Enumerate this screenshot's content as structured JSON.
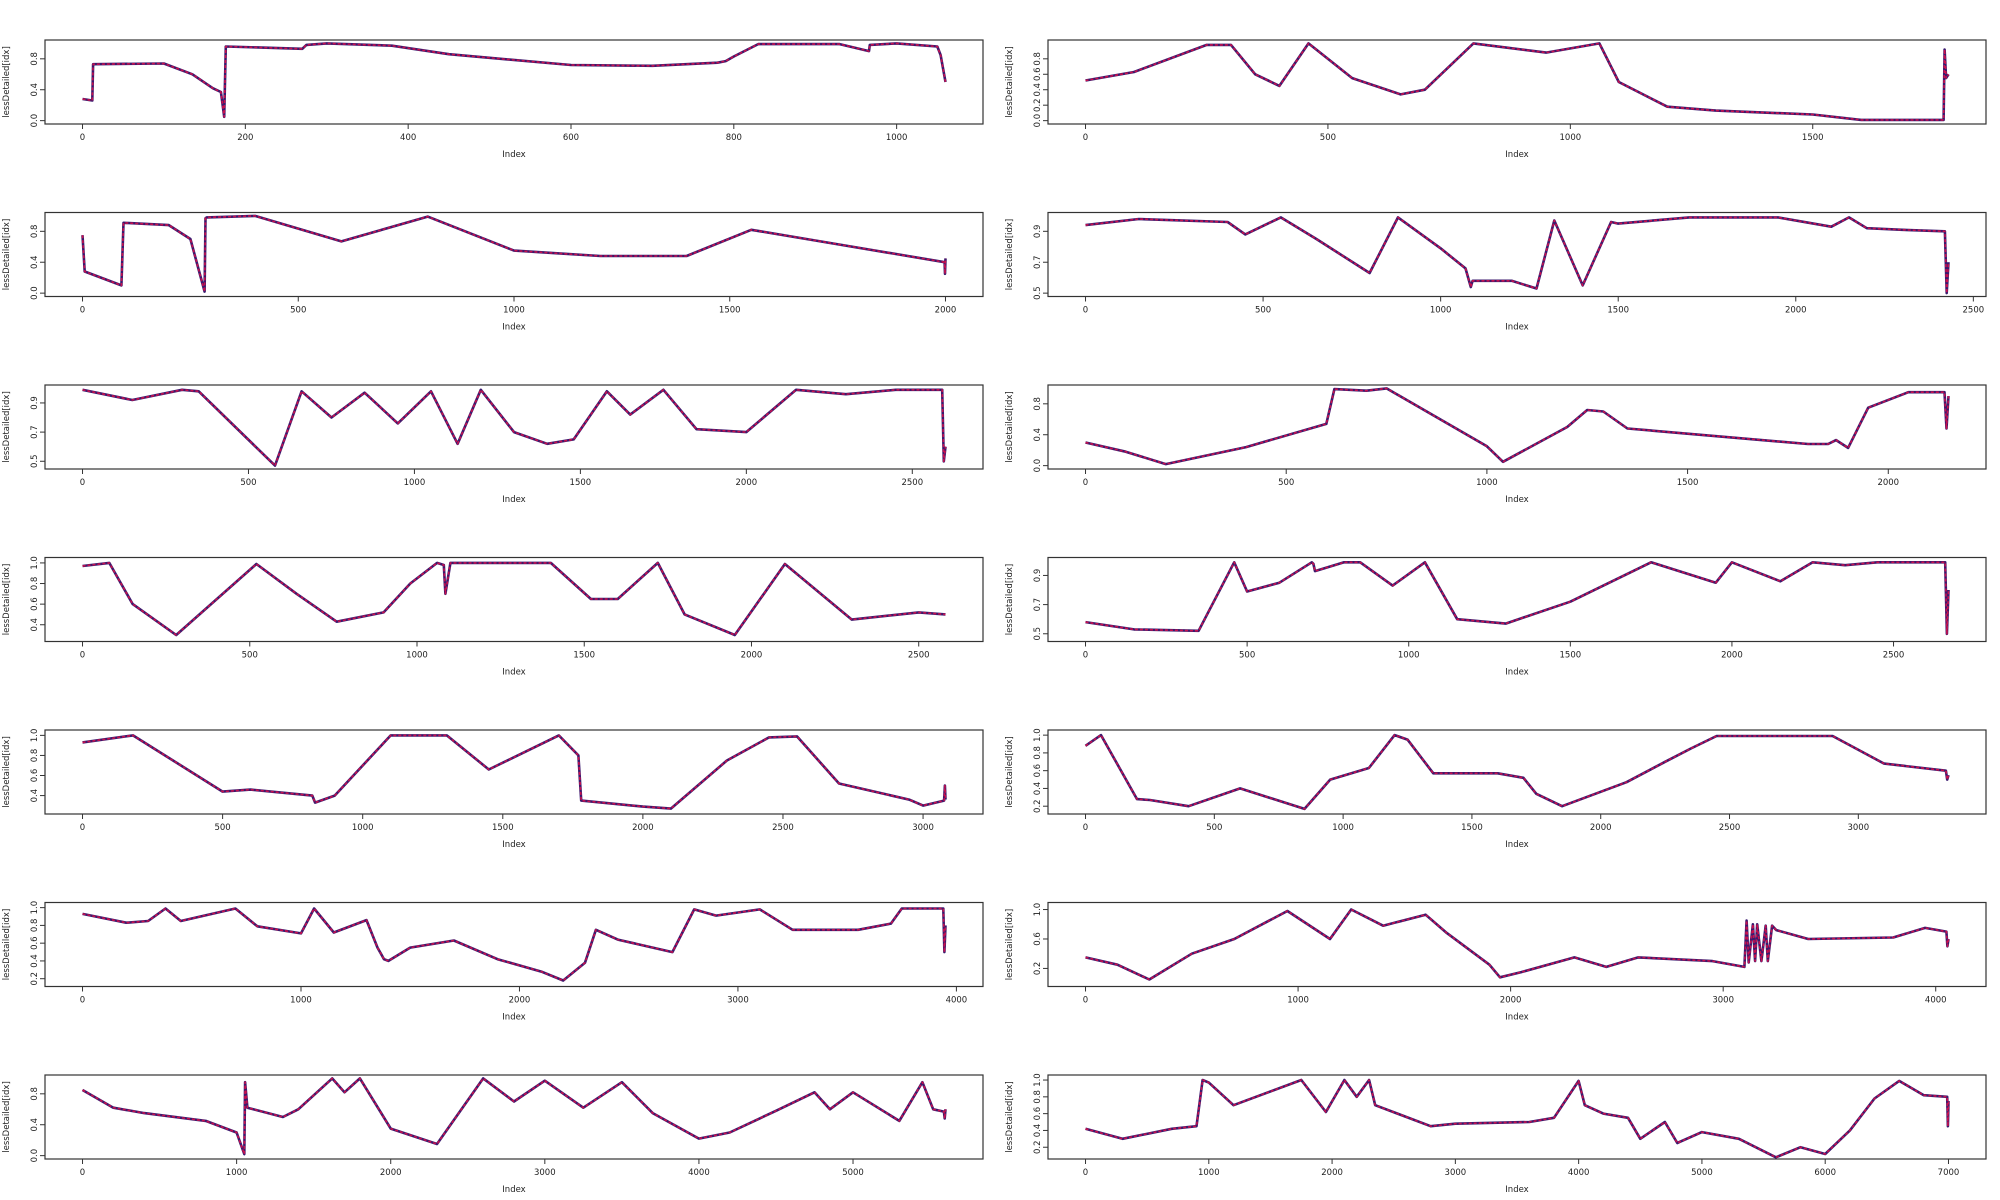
{
  "line_color": "#c8104e",
  "line_color_dark": "#3b1a6e",
  "chart_data": [
    {
      "type": "line",
      "xlabel": "Index",
      "ylabel": "lessDetailed[idx]",
      "n": 1060,
      "xticks": [
        0,
        200,
        400,
        600,
        800,
        1000
      ],
      "yticks": [
        "0.0",
        "0.4",
        "0.8"
      ],
      "ytick_values": [
        0,
        0.4,
        0.8
      ],
      "ylim": [
        0,
        1
      ],
      "x": [
        0,
        12,
        13,
        100,
        135,
        160,
        170,
        174,
        176,
        270,
        275,
        300,
        380,
        450,
        600,
        700,
        780,
        790,
        800,
        830,
        930,
        966,
        967,
        1000,
        1050,
        1054,
        1060
      ],
      "y": [
        0.28,
        0.26,
        0.73,
        0.74,
        0.6,
        0.42,
        0.37,
        0.05,
        0.96,
        0.93,
        0.98,
        1.0,
        0.97,
        0.86,
        0.72,
        0.71,
        0.75,
        0.77,
        0.83,
        0.99,
        0.99,
        0.9,
        0.98,
        1.0,
        0.96,
        0.85,
        0.5
      ]
    },
    {
      "type": "line",
      "xlabel": "Index",
      "ylabel": "lessDetailed[idx]",
      "n": 1780,
      "xticks": [
        0,
        500,
        1000,
        1500
      ],
      "yticks": [
        "0.0",
        "0.2",
        "0.4",
        "0.6",
        "0.8"
      ],
      "ytick_values": [
        0,
        0.2,
        0.4,
        0.6,
        0.8
      ],
      "ylim": [
        0,
        1
      ],
      "x": [
        0,
        100,
        250,
        300,
        350,
        400,
        460,
        550,
        650,
        700,
        800,
        950,
        1060,
        1100,
        1200,
        1300,
        1500,
        1600,
        1770,
        1772,
        1775,
        1780
      ],
      "y": [
        0.52,
        0.63,
        0.98,
        0.98,
        0.6,
        0.45,
        1.0,
        0.55,
        0.34,
        0.4,
        1.0,
        0.88,
        1.0,
        0.5,
        0.18,
        0.13,
        0.08,
        0.01,
        0.01,
        0.92,
        0.55,
        0.6
      ]
    },
    {
      "type": "line",
      "xlabel": "Index",
      "ylabel": "lessDetailed[idx]",
      "n": 2000,
      "xticks": [
        0,
        500,
        1000,
        1500,
        2000
      ],
      "yticks": [
        "0.0",
        "0.4",
        "0.8"
      ],
      "ytick_values": [
        0,
        0.4,
        0.8
      ],
      "ylim": [
        0,
        1
      ],
      "x": [
        0,
        5,
        90,
        95,
        200,
        250,
        283,
        285,
        288,
        400,
        600,
        800,
        1000,
        1200,
        1400,
        1550,
        1700,
        1998,
        1999,
        2000
      ],
      "y": [
        0.75,
        0.28,
        0.1,
        0.91,
        0.88,
        0.7,
        0.02,
        0.97,
        0.98,
        1.0,
        0.67,
        0.99,
        0.55,
        0.48,
        0.48,
        0.82,
        0.68,
        0.4,
        0.25,
        0.45
      ]
    },
    {
      "type": "line",
      "xlabel": "Index",
      "ylabel": "lessDetailed[idx]",
      "n": 2430,
      "xticks": [
        0,
        500,
        1000,
        1500,
        2000,
        2500
      ],
      "yticks": [
        "0.5",
        "0.7",
        "0.9"
      ],
      "ytick_values": [
        0.5,
        0.7,
        0.9
      ],
      "ylim": [
        0.5,
        1.0
      ],
      "x": [
        0,
        150,
        400,
        450,
        550,
        650,
        800,
        880,
        1000,
        1070,
        1085,
        1090,
        1200,
        1270,
        1320,
        1400,
        1480,
        1500,
        1700,
        1950,
        2100,
        2150,
        2200,
        2300,
        2420,
        2425,
        2430
      ],
      "y": [
        0.94,
        0.98,
        0.96,
        0.88,
        0.99,
        0.85,
        0.63,
        0.99,
        0.79,
        0.66,
        0.54,
        0.58,
        0.58,
        0.53,
        0.97,
        0.55,
        0.96,
        0.95,
        0.99,
        0.99,
        0.93,
        0.99,
        0.92,
        0.91,
        0.9,
        0.5,
        0.7
      ]
    },
    {
      "type": "line",
      "xlabel": "Index",
      "ylabel": "lessDetailed[idx]",
      "n": 2600,
      "xticks": [
        0,
        500,
        1000,
        1500,
        2000,
        2500
      ],
      "yticks": [
        "0.5",
        "0.7",
        "0.9"
      ],
      "ytick_values": [
        0.5,
        0.7,
        0.9
      ],
      "ylim": [
        0.47,
        1.0
      ],
      "x": [
        0,
        150,
        300,
        350,
        580,
        660,
        750,
        850,
        950,
        1050,
        1130,
        1200,
        1300,
        1400,
        1480,
        1580,
        1650,
        1750,
        1850,
        2000,
        2150,
        2300,
        2450,
        2590,
        2595,
        2600
      ],
      "y": [
        0.99,
        0.92,
        0.99,
        0.98,
        0.47,
        0.98,
        0.8,
        0.97,
        0.76,
        0.98,
        0.62,
        0.99,
        0.7,
        0.62,
        0.65,
        0.98,
        0.82,
        0.99,
        0.72,
        0.7,
        0.99,
        0.96,
        0.99,
        0.99,
        0.5,
        0.6
      ]
    },
    {
      "type": "line",
      "xlabel": "Index",
      "ylabel": "lessDetailed[idx]",
      "n": 2150,
      "xticks": [
        0,
        500,
        1000,
        1500,
        2000
      ],
      "yticks": [
        "0.0",
        "0.4",
        "0.8"
      ],
      "ytick_values": [
        0,
        0.4,
        0.8
      ],
      "ylim": [
        0,
        1
      ],
      "x": [
        0,
        100,
        200,
        400,
        600,
        620,
        700,
        750,
        1000,
        1040,
        1200,
        1250,
        1290,
        1350,
        1800,
        1850,
        1870,
        1900,
        1950,
        2050,
        2140,
        2145,
        2150
      ],
      "y": [
        0.3,
        0.18,
        0.02,
        0.24,
        0.54,
        0.99,
        0.97,
        1.0,
        0.25,
        0.05,
        0.5,
        0.72,
        0.7,
        0.48,
        0.28,
        0.28,
        0.33,
        0.23,
        0.75,
        0.95,
        0.95,
        0.48,
        0.9
      ]
    },
    {
      "type": "line",
      "xlabel": "Index",
      "ylabel": "lessDetailed[idx]",
      "n": 2580,
      "xticks": [
        0,
        500,
        1000,
        1500,
        2000,
        2500
      ],
      "yticks": [
        "0.4",
        "0.6",
        "0.8",
        "1.0"
      ],
      "ytick_values": [
        0.4,
        0.6,
        0.8,
        1.0
      ],
      "ylim": [
        0.27,
        1.02
      ],
      "x": [
        0,
        80,
        150,
        280,
        520,
        640,
        760,
        900,
        980,
        1060,
        1080,
        1085,
        1100,
        1400,
        1520,
        1600,
        1720,
        1800,
        1950,
        2100,
        2300,
        2500,
        2580
      ],
      "y": [
        0.97,
        1.0,
        0.6,
        0.3,
        0.99,
        0.7,
        0.43,
        0.52,
        0.8,
        1.0,
        0.98,
        0.7,
        1.0,
        1.0,
        0.65,
        0.65,
        1.0,
        0.5,
        0.3,
        0.99,
        0.45,
        0.52,
        0.5
      ]
    },
    {
      "type": "line",
      "xlabel": "Index",
      "ylabel": "lessDetailed[idx]",
      "n": 2670,
      "xticks": [
        0,
        500,
        1000,
        1500,
        2000,
        2500
      ],
      "yticks": [
        "0.5",
        "0.7",
        "0.9"
      ],
      "ytick_values": [
        0.5,
        0.7,
        0.9
      ],
      "ylim": [
        0.47,
        1.0
      ],
      "x": [
        0,
        150,
        350,
        460,
        500,
        600,
        700,
        705,
        710,
        800,
        850,
        950,
        1050,
        1150,
        1300,
        1500,
        1750,
        1950,
        2000,
        2150,
        2250,
        2350,
        2450,
        2660,
        2665,
        2670
      ],
      "y": [
        0.58,
        0.53,
        0.52,
        0.99,
        0.79,
        0.85,
        0.99,
        0.98,
        0.93,
        0.99,
        0.99,
        0.83,
        0.99,
        0.6,
        0.57,
        0.72,
        0.99,
        0.85,
        0.99,
        0.86,
        0.99,
        0.97,
        0.99,
        0.99,
        0.5,
        0.8
      ]
    },
    {
      "type": "line",
      "xlabel": "Index",
      "ylabel": "lessDetailed[idx]",
      "n": 3080,
      "xticks": [
        0,
        500,
        1000,
        1500,
        2000,
        2500,
        3000
      ],
      "yticks": [
        "0.4",
        "0.6",
        "0.8",
        "1.0"
      ],
      "ytick_values": [
        0.4,
        0.6,
        0.8,
        1.0
      ],
      "ylim": [
        0.25,
        1.02
      ],
      "x": [
        0,
        180,
        500,
        600,
        820,
        830,
        900,
        1100,
        1300,
        1450,
        1700,
        1770,
        1780,
        2000,
        2100,
        2300,
        2450,
        2550,
        2700,
        2950,
        3000,
        3075,
        3078,
        3080
      ],
      "y": [
        0.93,
        1.0,
        0.44,
        0.46,
        0.4,
        0.33,
        0.4,
        1.0,
        1.0,
        0.66,
        1.0,
        0.8,
        0.35,
        0.29,
        0.27,
        0.75,
        0.98,
        0.99,
        0.52,
        0.36,
        0.3,
        0.35,
        0.5,
        0.36
      ]
    },
    {
      "type": "line",
      "xlabel": "Index",
      "ylabel": "lessDetailed[idx]",
      "n": 3350,
      "xticks": [
        0,
        500,
        1000,
        1500,
        2000,
        2500,
        3000
      ],
      "yticks": [
        "0.2",
        "0.4",
        "0.6",
        "0.8",
        "1.0"
      ],
      "ytick_values": [
        0.2,
        0.4,
        0.6,
        0.8,
        1.0
      ],
      "ylim": [
        0.15,
        1.02
      ],
      "x": [
        0,
        60,
        200,
        250,
        400,
        600,
        850,
        950,
        1100,
        1200,
        1250,
        1350,
        1600,
        1700,
        1750,
        1850,
        2100,
        2250,
        2350,
        2450,
        2550,
        2900,
        3100,
        3340,
        3345,
        3350
      ],
      "y": [
        0.88,
        1.0,
        0.28,
        0.27,
        0.2,
        0.4,
        0.17,
        0.5,
        0.63,
        1.0,
        0.95,
        0.57,
        0.57,
        0.52,
        0.34,
        0.2,
        0.47,
        0.7,
        0.85,
        0.99,
        0.99,
        0.99,
        0.68,
        0.6,
        0.5,
        0.55
      ]
    },
    {
      "type": "line",
      "xlabel": "Index",
      "ylabel": "lessDetailed[idx]",
      "n": 3950,
      "xticks": [
        0,
        1000,
        2000,
        3000,
        4000
      ],
      "yticks": [
        "0.2",
        "0.4",
        "0.6",
        "0.8",
        "1.0"
      ],
      "ytick_values": [
        0.2,
        0.4,
        0.6,
        0.8,
        1.0
      ],
      "ylim": [
        0.15,
        1.02
      ],
      "x": [
        0,
        200,
        300,
        380,
        450,
        700,
        800,
        1000,
        1060,
        1150,
        1300,
        1350,
        1380,
        1400,
        1500,
        1700,
        1900,
        2100,
        2200,
        2300,
        2350,
        2450,
        2700,
        2800,
        2900,
        3100,
        3250,
        3550,
        3700,
        3750,
        3940,
        3945,
        3950
      ],
      "y": [
        0.93,
        0.83,
        0.85,
        0.99,
        0.85,
        0.99,
        0.79,
        0.71,
        0.99,
        0.72,
        0.86,
        0.55,
        0.42,
        0.4,
        0.55,
        0.63,
        0.42,
        0.28,
        0.18,
        0.38,
        0.75,
        0.64,
        0.5,
        0.98,
        0.91,
        0.98,
        0.75,
        0.75,
        0.82,
        0.99,
        0.99,
        0.5,
        0.8
      ]
    },
    {
      "type": "line",
      "xlabel": "Index",
      "ylabel": "lessDetailed[idx]",
      "n": 4060,
      "xticks": [
        0,
        1000,
        2000,
        3000,
        4000
      ],
      "yticks": [
        "0.2",
        "0.6",
        "1.0"
      ],
      "ytick_values": [
        0.2,
        0.6,
        1.0
      ],
      "ylim": [
        0,
        1.05
      ],
      "x": [
        0,
        150,
        300,
        500,
        700,
        950,
        1150,
        1250,
        1400,
        1600,
        1700,
        1900,
        1950,
        2050,
        2300,
        2450,
        2600,
        2950,
        3100,
        3110,
        3120,
        3140,
        3150,
        3160,
        3180,
        3200,
        3210,
        3230,
        3250,
        3400,
        3800,
        3950,
        4050,
        4055,
        4060
      ],
      "y": [
        0.35,
        0.25,
        0.05,
        0.4,
        0.6,
        0.98,
        0.6,
        1.0,
        0.78,
        0.93,
        0.68,
        0.25,
        0.08,
        0.15,
        0.35,
        0.22,
        0.35,
        0.3,
        0.22,
        0.85,
        0.28,
        0.8,
        0.3,
        0.8,
        0.3,
        0.78,
        0.3,
        0.78,
        0.72,
        0.6,
        0.62,
        0.75,
        0.7,
        0.5,
        0.6
      ]
    },
    {
      "type": "line",
      "xlabel": "Index",
      "ylabel": "lessDetailed[idx]",
      "n": 5600,
      "xticks": [
        0,
        1000,
        2000,
        3000,
        4000,
        5000
      ],
      "yticks": [
        "0.0",
        "0.4",
        "0.8"
      ],
      "ytick_values": [
        0,
        0.4,
        0.8
      ],
      "ylim": [
        0,
        1
      ],
      "x": [
        0,
        200,
        400,
        800,
        1000,
        1050,
        1055,
        1070,
        1300,
        1400,
        1620,
        1700,
        1800,
        2000,
        2300,
        2600,
        2800,
        3000,
        3250,
        3500,
        3700,
        4000,
        4200,
        4500,
        4750,
        4850,
        5000,
        5300,
        5450,
        5520,
        5590,
        5595,
        5600
      ],
      "y": [
        0.85,
        0.62,
        0.55,
        0.45,
        0.3,
        0.02,
        0.95,
        0.62,
        0.5,
        0.6,
        1.0,
        0.82,
        1.0,
        0.35,
        0.15,
        1.0,
        0.7,
        0.97,
        0.62,
        0.95,
        0.55,
        0.22,
        0.3,
        0.58,
        0.82,
        0.6,
        0.82,
        0.45,
        0.95,
        0.6,
        0.57,
        0.48,
        0.6
      ]
    },
    {
      "type": "line",
      "xlabel": "Index",
      "ylabel": "lessDetailed[idx]",
      "n": 7000,
      "xticks": [
        0,
        1000,
        2000,
        3000,
        4000,
        5000,
        6000,
        7000
      ],
      "yticks": [
        "0.2",
        "0.4",
        "0.6",
        "0.8",
        "1.0"
      ],
      "ytick_values": [
        0.2,
        0.4,
        0.6,
        0.8,
        1.0
      ],
      "ylim": [
        0.1,
        1.02
      ],
      "x": [
        0,
        300,
        700,
        900,
        950,
        1000,
        1200,
        1750,
        1950,
        2100,
        2200,
        2300,
        2350,
        2800,
        3000,
        3600,
        3800,
        4000,
        4050,
        4200,
        4400,
        4500,
        4700,
        4800,
        5000,
        5300,
        5600,
        5800,
        6000,
        6200,
        6400,
        6600,
        6800,
        6990,
        6995,
        7000
      ],
      "y": [
        0.42,
        0.3,
        0.42,
        0.45,
        1.0,
        0.97,
        0.7,
        1.0,
        0.62,
        1.0,
        0.8,
        1.0,
        0.7,
        0.45,
        0.48,
        0.5,
        0.55,
        0.99,
        0.7,
        0.6,
        0.55,
        0.3,
        0.5,
        0.25,
        0.38,
        0.3,
        0.08,
        0.2,
        0.12,
        0.4,
        0.78,
        0.99,
        0.82,
        0.8,
        0.45,
        0.75
      ]
    }
  ]
}
